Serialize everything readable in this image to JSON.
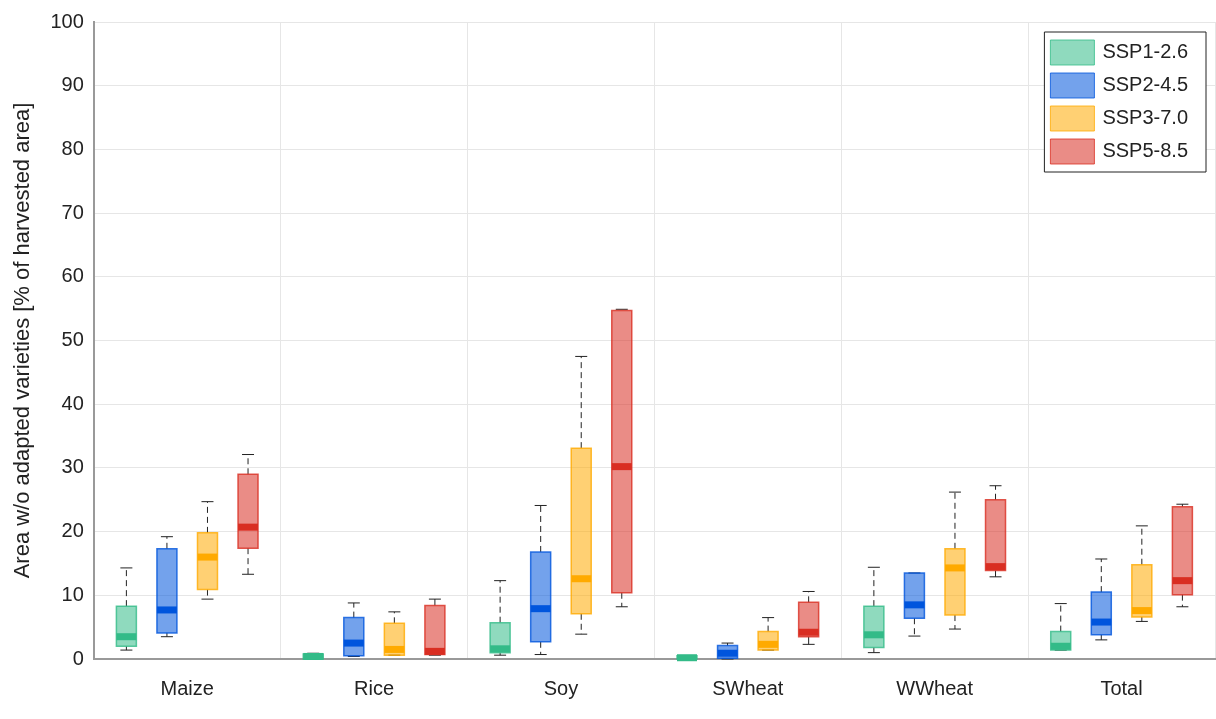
{
  "chart_data": {
    "type": "box",
    "ylabel": "Area w/o adapted varieties [% of harvested area]",
    "categories": [
      "Maize",
      "Rice",
      "Soy",
      "SWheat",
      "WWheat",
      "Total"
    ],
    "ylim": [
      0,
      100
    ],
    "yticks": [
      0,
      10,
      20,
      30,
      40,
      50,
      60,
      70,
      80,
      90,
      100
    ],
    "grid": true,
    "legend": "top right",
    "series": [
      {
        "name": "SSP1-2.6",
        "color": "#33bb88",
        "boxes": [
          {
            "low": 1.4,
            "q1": 2.0,
            "median": 3.5,
            "q3": 8.3,
            "high": 14.3
          },
          {
            "low": 0,
            "q1": 0,
            "median": 0.4,
            "q3": 0.8,
            "high": 0.9
          },
          {
            "low": 0.6,
            "q1": 1.0,
            "median": 1.6,
            "q3": 5.7,
            "high": 12.3
          },
          {
            "low": 0,
            "q1": 0,
            "median": 0.2,
            "q3": 0.5,
            "high": 0.5
          },
          {
            "low": 1.0,
            "q1": 1.8,
            "median": 3.8,
            "q3": 8.3,
            "high": 14.4
          },
          {
            "low": 1.4,
            "q1": 1.4,
            "median": 2.0,
            "q3": 4.3,
            "high": 8.7
          }
        ]
      },
      {
        "name": "SSP2-4.5",
        "color": "#0055dd",
        "boxes": [
          {
            "low": 3.5,
            "q1": 4.1,
            "median": 7.7,
            "q3": 17.3,
            "high": 19.2
          },
          {
            "low": 0.4,
            "q1": 0.5,
            "median": 2.5,
            "q3": 6.5,
            "high": 8.8
          },
          {
            "low": 0.7,
            "q1": 2.7,
            "median": 7.9,
            "q3": 16.8,
            "high": 24.1
          },
          {
            "low": 0,
            "q1": 0.1,
            "median": 0.9,
            "q3": 2.1,
            "high": 2.5
          },
          {
            "low": 3.6,
            "q1": 6.4,
            "median": 8.5,
            "q3": 13.5,
            "high": 13.5
          },
          {
            "low": 3.0,
            "q1": 3.8,
            "median": 5.8,
            "q3": 10.5,
            "high": 15.7
          }
        ]
      },
      {
        "name": "SSP3-7.0",
        "color": "#ffaa00",
        "boxes": [
          {
            "low": 9.4,
            "q1": 10.9,
            "median": 16.0,
            "q3": 19.8,
            "high": 24.7
          },
          {
            "low": 0.6,
            "q1": 0.6,
            "median": 1.5,
            "q3": 5.6,
            "high": 7.4
          },
          {
            "low": 3.9,
            "q1": 7.1,
            "median": 12.6,
            "q3": 33.1,
            "high": 47.5
          },
          {
            "low": 1.4,
            "q1": 1.4,
            "median": 2.3,
            "q3": 4.3,
            "high": 6.5
          },
          {
            "low": 4.7,
            "q1": 6.9,
            "median": 14.3,
            "q3": 17.3,
            "high": 26.2
          },
          {
            "low": 5.9,
            "q1": 6.6,
            "median": 7.6,
            "q3": 14.8,
            "high": 20.9
          }
        ]
      },
      {
        "name": "SSP5-8.5",
        "color": "#d92e22",
        "boxes": [
          {
            "low": 13.3,
            "q1": 17.4,
            "median": 20.7,
            "q3": 29.0,
            "high": 32.1
          },
          {
            "low": 0.6,
            "q1": 0.7,
            "median": 1.2,
            "q3": 8.4,
            "high": 9.4
          },
          {
            "low": 8.2,
            "q1": 10.4,
            "median": 30.2,
            "q3": 54.7,
            "high": 54.9
          },
          {
            "low": 2.3,
            "q1": 3.5,
            "median": 4.2,
            "q3": 8.9,
            "high": 10.6
          },
          {
            "low": 12.9,
            "q1": 13.9,
            "median": 14.5,
            "q3": 25.0,
            "high": 27.2
          },
          {
            "low": 8.2,
            "q1": 10.1,
            "median": 12.3,
            "q3": 23.9,
            "high": 24.3
          }
        ]
      }
    ]
  }
}
